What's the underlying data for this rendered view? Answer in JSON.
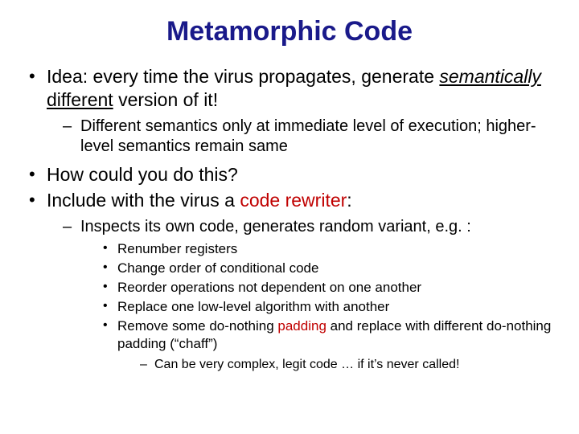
{
  "title": "Metamorphic Code",
  "colors": {
    "title": "#1a1a8a",
    "text": "#000000",
    "accent": "#c00000",
    "background": "#ffffff"
  },
  "fontsizes": {
    "title": 34,
    "lvl1": 23,
    "lvl2": 20,
    "lvl3": 17,
    "lvl4": 16
  },
  "bullets": {
    "b1_pre": "Idea: every time the virus propagates, generate ",
    "b1_semantically": "semantically",
    "b1_space": " ",
    "b1_different": "different",
    "b1_post": " version of it!",
    "b1_sub1": "Different semantics only at immediate level of execution; higher-level semantics remain same",
    "b2": "How could you do this?",
    "b3_pre": "Include with the virus a ",
    "b3_rewriter": "code rewriter",
    "b3_post": ":",
    "b3_sub1": "Inspects its own code, generates random variant, e.g. :",
    "b3_s1_i1": "Renumber registers",
    "b3_s1_i2": "Change order of conditional code",
    "b3_s1_i3": "Reorder operations not dependent on one another",
    "b3_s1_i4": "Replace one low-level algorithm with another",
    "b3_s1_i5_pre": "Remove some do-nothing ",
    "b3_s1_i5_pad": "padding",
    "b3_s1_i5_post": " and replace with different do-nothing padding (“chaff”)",
    "b3_s1_i5_sub": "Can be very complex, legit code … if it’s never called!"
  }
}
